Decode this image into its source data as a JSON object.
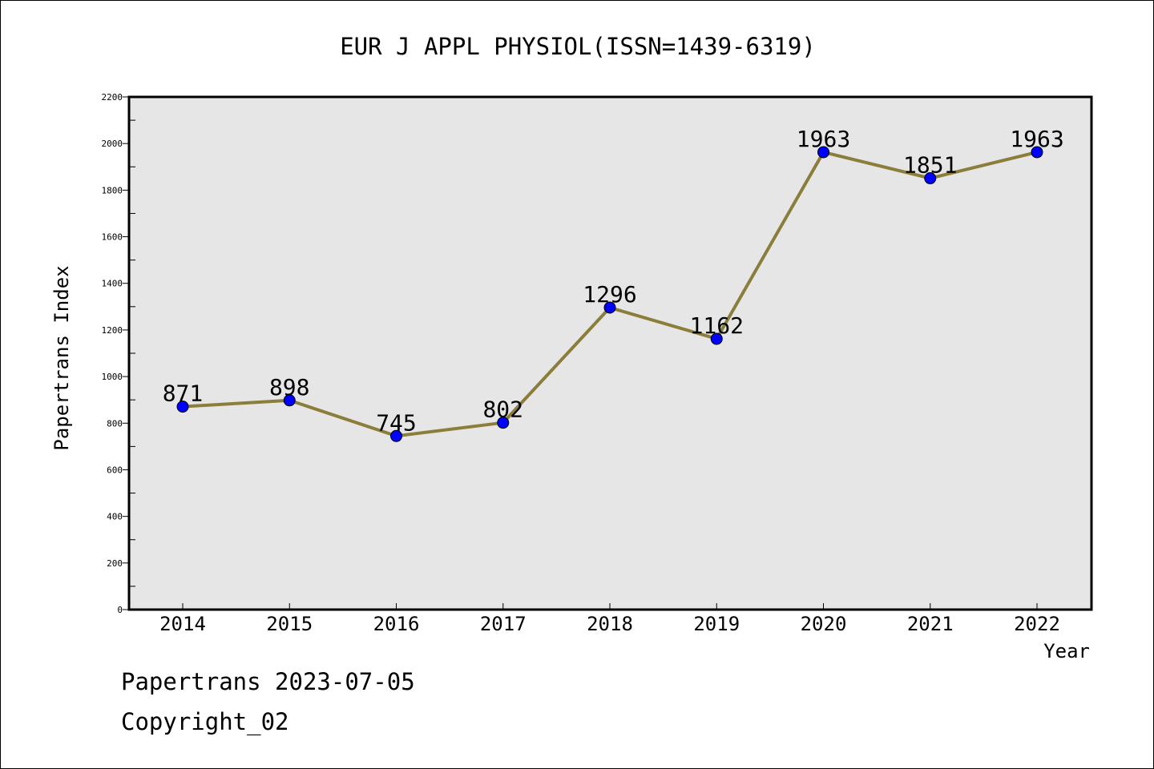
{
  "chart_data": {
    "type": "line",
    "title": "EUR J APPL PHYSIOL(ISSN=1439-6319)",
    "xlabel": "Year",
    "ylabel": "Papertrans Index",
    "categories": [
      "2014",
      "2015",
      "2016",
      "2017",
      "2018",
      "2019",
      "2020",
      "2021",
      "2022"
    ],
    "series": [
      {
        "values": [
          871,
          898,
          745,
          802,
          1296,
          1162,
          1963,
          1851,
          1963
        ]
      }
    ],
    "data_labels": [
      "871",
      "898",
      "745",
      "802",
      "1296",
      "1162",
      "1963",
      "1851",
      "1963"
    ],
    "ylim": [
      0,
      2200
    ],
    "yticks": [
      0,
      200,
      400,
      600,
      800,
      1000,
      1200,
      1400,
      1600,
      1800,
      2000,
      2200
    ],
    "ytick_labels": [
      "0",
      "200",
      "400",
      "600",
      "800",
      "1000",
      "1200",
      "1400",
      "1600",
      "1800",
      "2000",
      "2200"
    ],
    "grid": false,
    "colors": {
      "line": "#8b7d3a",
      "marker": "#0000ff",
      "plot_background": "#e6e6e6"
    }
  },
  "footer": {
    "line1": "Papertrans 2023-07-05",
    "line2": "Copyright_02"
  }
}
